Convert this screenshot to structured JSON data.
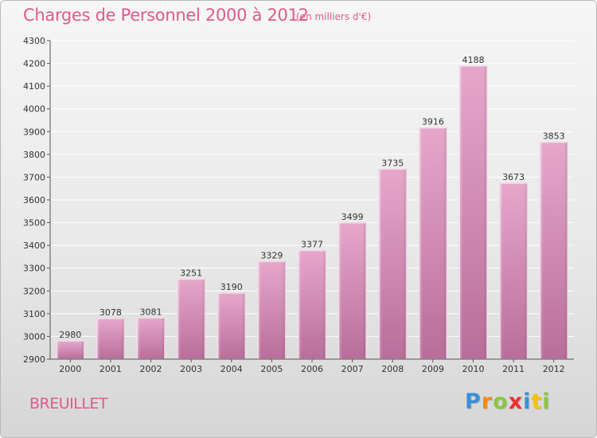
{
  "header": {
    "title": "Charges de Personnel 2000 à 2012",
    "subtitle": "(en milliers d'€)"
  },
  "footer": {
    "commune": "BREUILLET",
    "logo_letters": [
      "P",
      "r",
      "o",
      "x",
      "i",
      "t",
      "i"
    ],
    "logo_colors": [
      "#3a8fd8",
      "#f08a1c",
      "#8cc63f",
      "#e8312f",
      "#3a8fd8",
      "#f5c400",
      "#8cc63f"
    ]
  },
  "chart_data": {
    "type": "bar",
    "title": "Charges de Personnel 2000 à 2012",
    "subtitle": "(en milliers d'€)",
    "xlabel": "",
    "ylabel": "",
    "categories": [
      "2000",
      "2001",
      "2002",
      "2003",
      "2004",
      "2005",
      "2006",
      "2007",
      "2008",
      "2009",
      "2010",
      "2011",
      "2012"
    ],
    "values": [
      2980,
      3078,
      3081,
      3251,
      3190,
      3329,
      3377,
      3499,
      3735,
      3916,
      4188,
      3673,
      3853
    ],
    "ylim": [
      2900,
      4300
    ],
    "yticks": [
      2900,
      3000,
      3100,
      3200,
      3300,
      3400,
      3500,
      3600,
      3700,
      3800,
      3900,
      4000,
      4100,
      4200,
      4300
    ],
    "grid": true,
    "legend": "none",
    "bar_color": "#d98bb8",
    "data_labels": true
  }
}
